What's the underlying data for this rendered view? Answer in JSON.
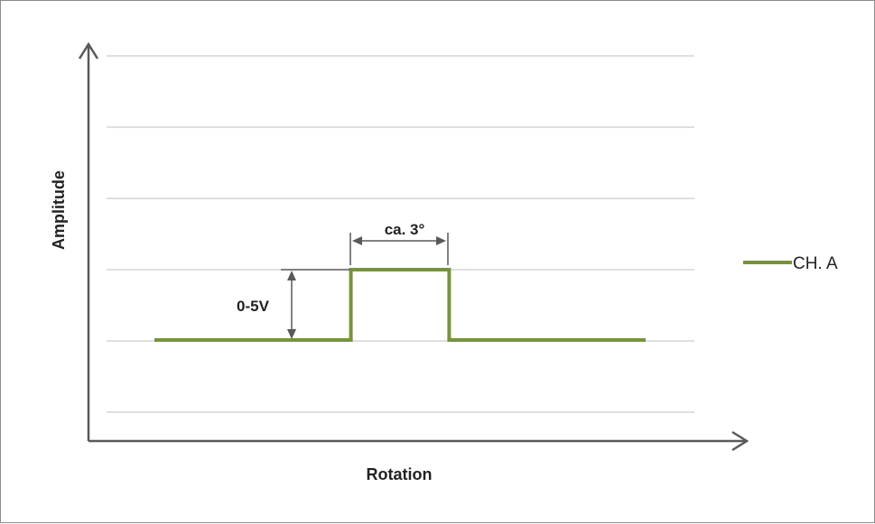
{
  "chart_data": {
    "type": "line",
    "title": "",
    "xlabel": "Rotation",
    "ylabel": "Amplitude",
    "grid": true,
    "legend_position": "right",
    "series": [
      {
        "name": "CH. A",
        "color": "#76933c",
        "steps": [
          {
            "x": 0,
            "y": 0
          },
          {
            "x": 4,
            "y": 0
          },
          {
            "x": 4,
            "y": 1
          },
          {
            "x": 6,
            "y": 1
          },
          {
            "x": 6,
            "y": 0
          },
          {
            "x": 10,
            "y": 0
          }
        ]
      }
    ],
    "annotations": {
      "pulse_width": "ca. 3°",
      "amplitude": "0-5V"
    },
    "colors": {
      "axis": "#595959",
      "grid": "#bfbfbf",
      "dimension": "#595959"
    }
  }
}
